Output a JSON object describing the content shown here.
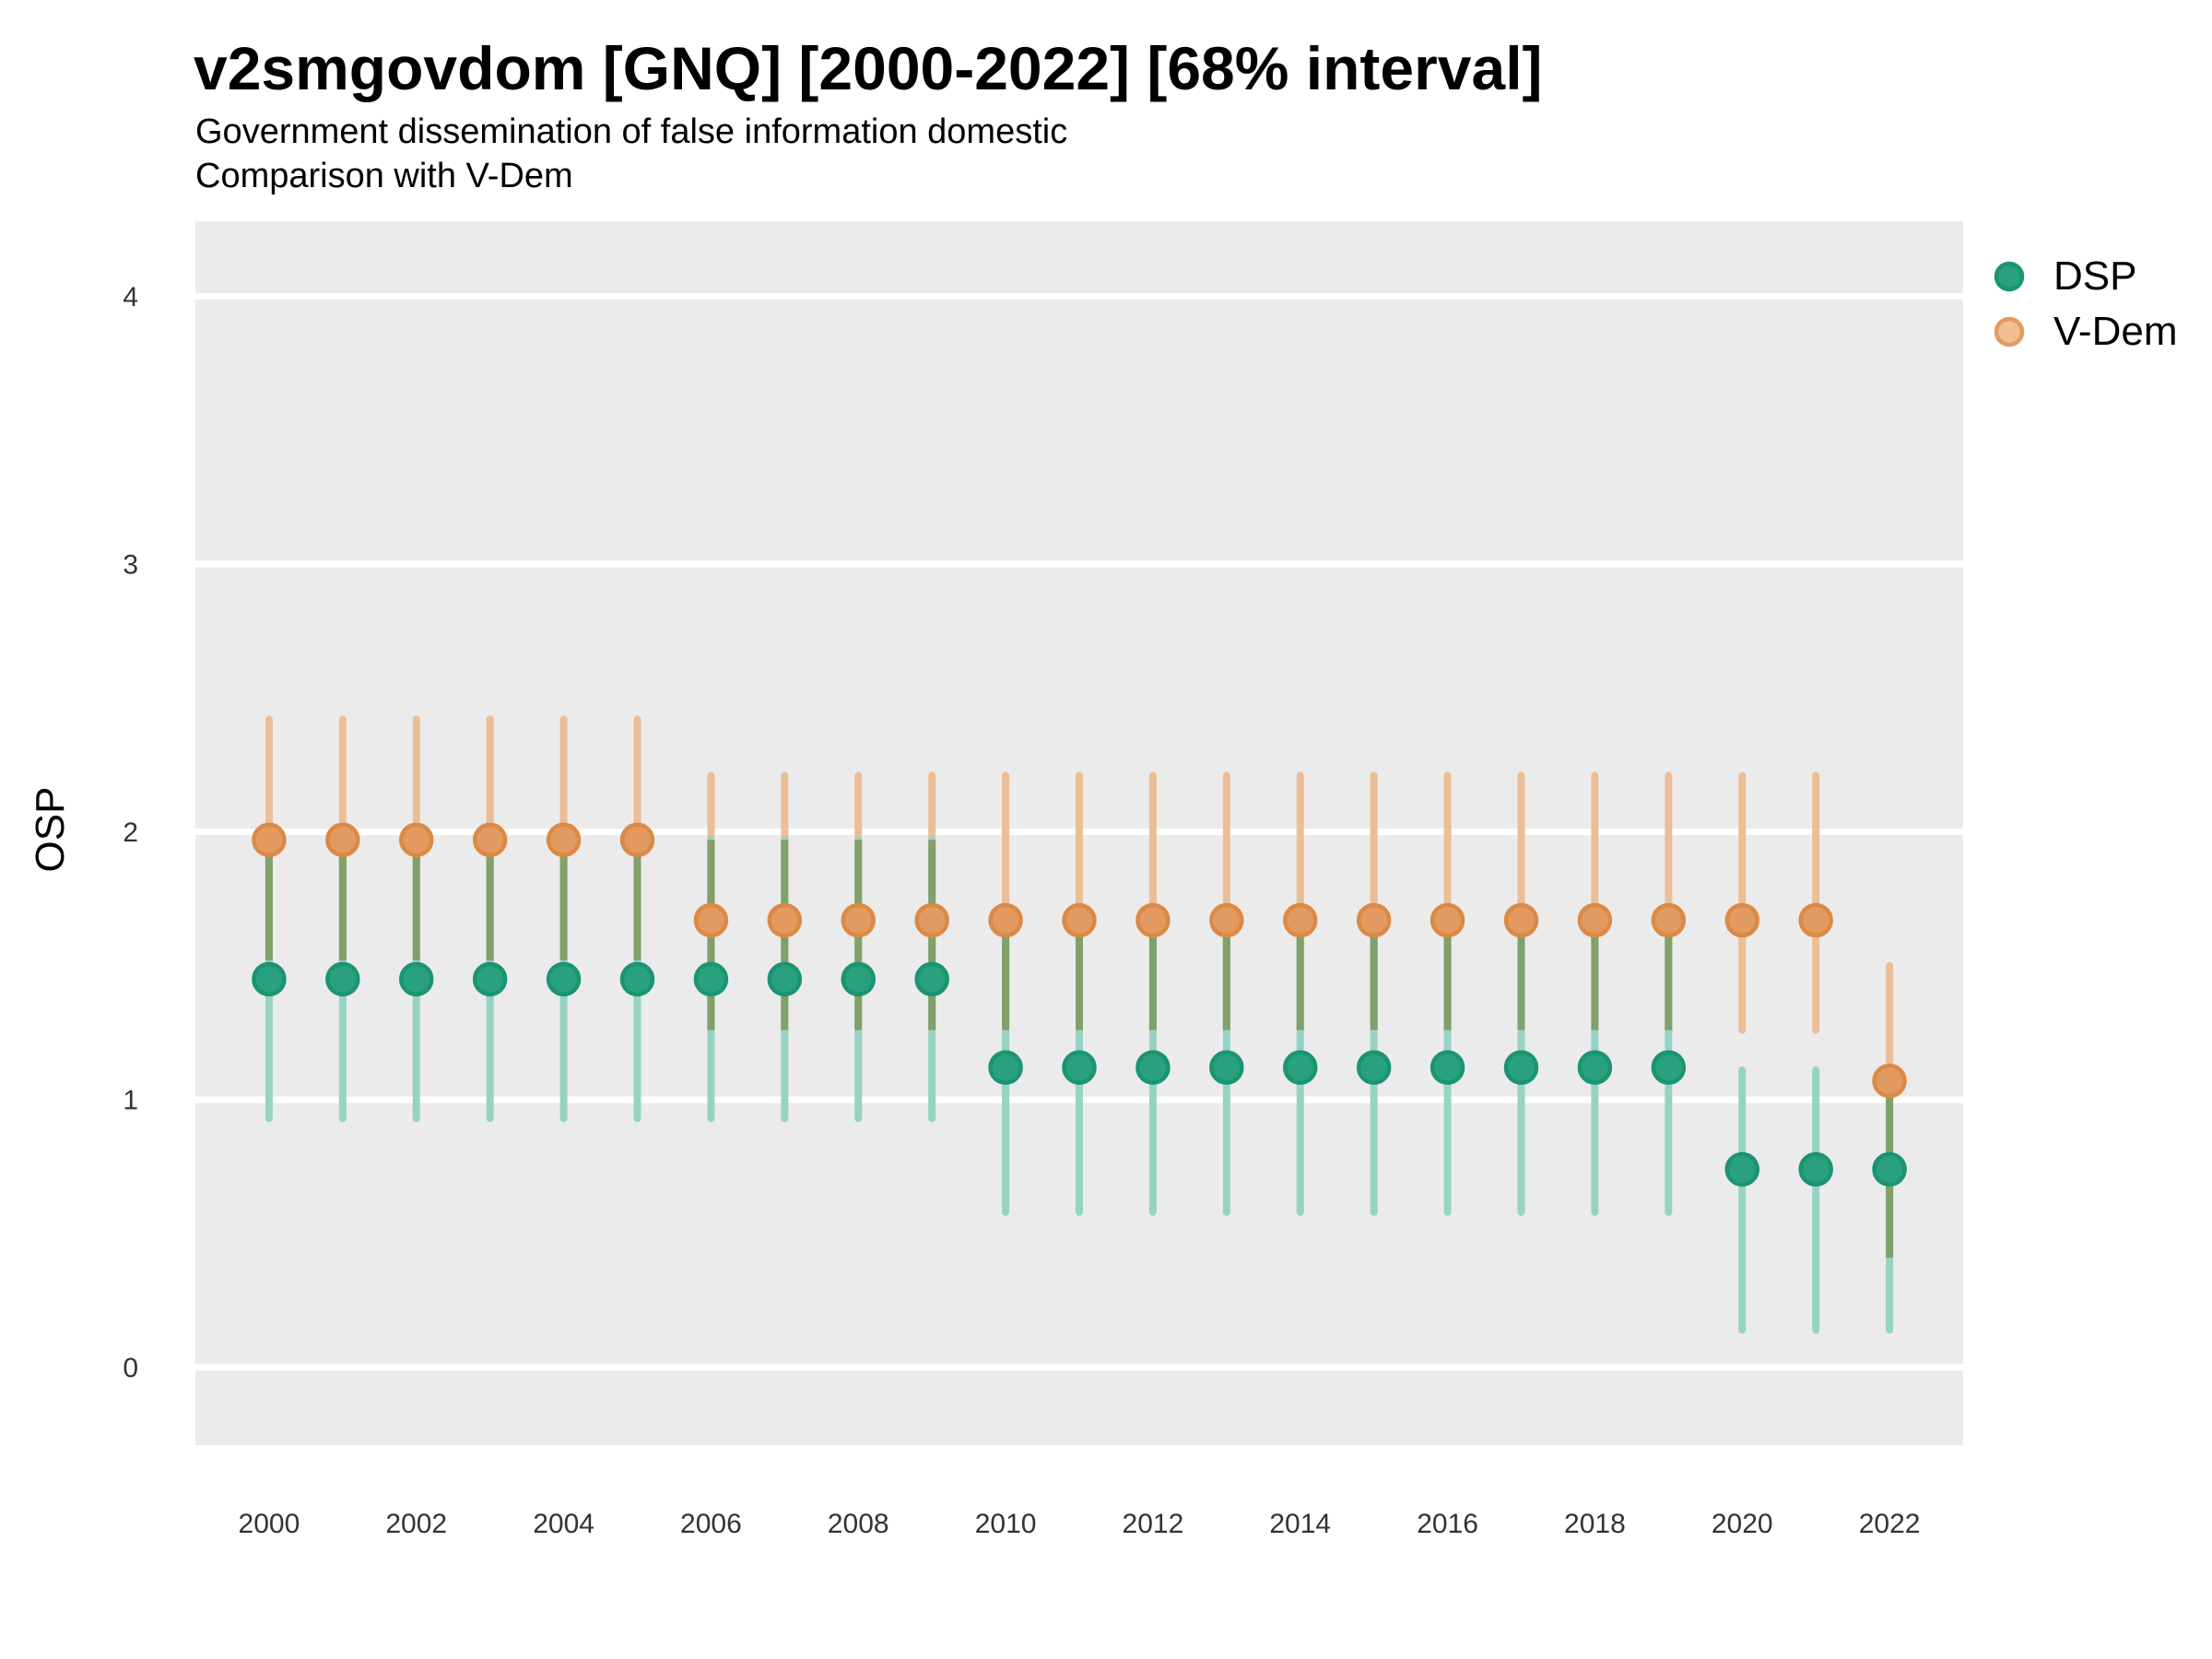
{
  "chart_data": {
    "type": "pointrange",
    "title": "v2smgovdom [GNQ] [2000-2022] [68% interval]",
    "subtitle_lines": [
      "Government dissemination of false information domestic",
      "Comparison with V-Dem"
    ],
    "ylabel": "OSP",
    "xlabel": "",
    "x_ticks": [
      2000,
      2002,
      2004,
      2006,
      2008,
      2010,
      2012,
      2014,
      2016,
      2018,
      2020,
      2022
    ],
    "y_ticks": [
      0,
      1,
      2,
      3,
      4
    ],
    "x_domain": [
      1999.0,
      2023.0
    ],
    "y_domain": [
      -0.29,
      4.28
    ],
    "grid": "major-y-only",
    "legend_position": "right-top",
    "series": [
      {
        "name": "DSP",
        "points": [
          {
            "year": 2000,
            "est": 1.45,
            "lo": 0.93,
            "hi": 1.97
          },
          {
            "year": 2001,
            "est": 1.45,
            "lo": 0.93,
            "hi": 1.97
          },
          {
            "year": 2002,
            "est": 1.45,
            "lo": 0.93,
            "hi": 1.97
          },
          {
            "year": 2003,
            "est": 1.45,
            "lo": 0.93,
            "hi": 1.97
          },
          {
            "year": 2004,
            "est": 1.45,
            "lo": 0.93,
            "hi": 1.97
          },
          {
            "year": 2005,
            "est": 1.45,
            "lo": 0.93,
            "hi": 1.97
          },
          {
            "year": 2006,
            "est": 1.45,
            "lo": 0.93,
            "hi": 1.97
          },
          {
            "year": 2007,
            "est": 1.45,
            "lo": 0.93,
            "hi": 1.97
          },
          {
            "year": 2008,
            "est": 1.45,
            "lo": 0.93,
            "hi": 1.97
          },
          {
            "year": 2009,
            "est": 1.45,
            "lo": 0.93,
            "hi": 1.97
          },
          {
            "year": 2010,
            "est": 1.12,
            "lo": 0.58,
            "hi": 1.66
          },
          {
            "year": 2011,
            "est": 1.12,
            "lo": 0.58,
            "hi": 1.66
          },
          {
            "year": 2012,
            "est": 1.12,
            "lo": 0.58,
            "hi": 1.66
          },
          {
            "year": 2013,
            "est": 1.12,
            "lo": 0.58,
            "hi": 1.66
          },
          {
            "year": 2014,
            "est": 1.12,
            "lo": 0.58,
            "hi": 1.66
          },
          {
            "year": 2015,
            "est": 1.12,
            "lo": 0.58,
            "hi": 1.66
          },
          {
            "year": 2016,
            "est": 1.12,
            "lo": 0.58,
            "hi": 1.66
          },
          {
            "year": 2017,
            "est": 1.12,
            "lo": 0.58,
            "hi": 1.66
          },
          {
            "year": 2018,
            "est": 1.12,
            "lo": 0.58,
            "hi": 1.66
          },
          {
            "year": 2019,
            "est": 1.12,
            "lo": 0.58,
            "hi": 1.66
          },
          {
            "year": 2020,
            "est": 0.74,
            "lo": 0.14,
            "hi": 1.11
          },
          {
            "year": 2021,
            "est": 0.74,
            "lo": 0.14,
            "hi": 1.11
          },
          {
            "year": 2022,
            "est": 0.74,
            "lo": 0.14,
            "hi": 1.11
          }
        ]
      },
      {
        "name": "V-Dem",
        "points": [
          {
            "year": 2000,
            "est": 1.97,
            "lo": 1.52,
            "hi": 2.42
          },
          {
            "year": 2001,
            "est": 1.97,
            "lo": 1.52,
            "hi": 2.42
          },
          {
            "year": 2002,
            "est": 1.97,
            "lo": 1.52,
            "hi": 2.42
          },
          {
            "year": 2003,
            "est": 1.97,
            "lo": 1.52,
            "hi": 2.42
          },
          {
            "year": 2004,
            "est": 1.97,
            "lo": 1.52,
            "hi": 2.42
          },
          {
            "year": 2005,
            "est": 1.97,
            "lo": 1.52,
            "hi": 2.42
          },
          {
            "year": 2006,
            "est": 1.67,
            "lo": 1.26,
            "hi": 2.21
          },
          {
            "year": 2007,
            "est": 1.67,
            "lo": 1.26,
            "hi": 2.21
          },
          {
            "year": 2008,
            "est": 1.67,
            "lo": 1.26,
            "hi": 2.21
          },
          {
            "year": 2009,
            "est": 1.67,
            "lo": 1.26,
            "hi": 2.21
          },
          {
            "year": 2010,
            "est": 1.67,
            "lo": 1.26,
            "hi": 2.21
          },
          {
            "year": 2011,
            "est": 1.67,
            "lo": 1.26,
            "hi": 2.21
          },
          {
            "year": 2012,
            "est": 1.67,
            "lo": 1.26,
            "hi": 2.21
          },
          {
            "year": 2013,
            "est": 1.67,
            "lo": 1.26,
            "hi": 2.21
          },
          {
            "year": 2014,
            "est": 1.67,
            "lo": 1.26,
            "hi": 2.21
          },
          {
            "year": 2015,
            "est": 1.67,
            "lo": 1.26,
            "hi": 2.21
          },
          {
            "year": 2016,
            "est": 1.67,
            "lo": 1.26,
            "hi": 2.21
          },
          {
            "year": 2017,
            "est": 1.67,
            "lo": 1.26,
            "hi": 2.21
          },
          {
            "year": 2018,
            "est": 1.67,
            "lo": 1.26,
            "hi": 2.21
          },
          {
            "year": 2019,
            "est": 1.67,
            "lo": 1.26,
            "hi": 2.21
          },
          {
            "year": 2020,
            "est": 1.67,
            "lo": 1.26,
            "hi": 2.21
          },
          {
            "year": 2021,
            "est": 1.67,
            "lo": 1.26,
            "hi": 2.21
          },
          {
            "year": 2022,
            "est": 1.07,
            "lo": 0.41,
            "hi": 1.5
          }
        ]
      }
    ],
    "legend": [
      {
        "label": "DSP"
      },
      {
        "label": "V-Dem"
      }
    ],
    "style": {
      "panel_bg": "#EBEBEB",
      "grid_color": "#FFFFFF",
      "tick_label_color": "#333333",
      "dsp_point_fill": "#29A17E",
      "dsp_point_stroke": "#1B9471",
      "dsp_bar": "#96D3C3",
      "vdem_point_fill": "#E29A60",
      "vdem_point_stroke": "#DB8A45",
      "vdem_bar": "#ECBE96",
      "overlap_bar": "#82A069",
      "legend_dsp_fill": "#29A17E",
      "legend_dsp_stroke": "#1B9471",
      "legend_vdem_fill": "#F2BD8F",
      "legend_vdem_stroke": "#E39A62"
    }
  }
}
